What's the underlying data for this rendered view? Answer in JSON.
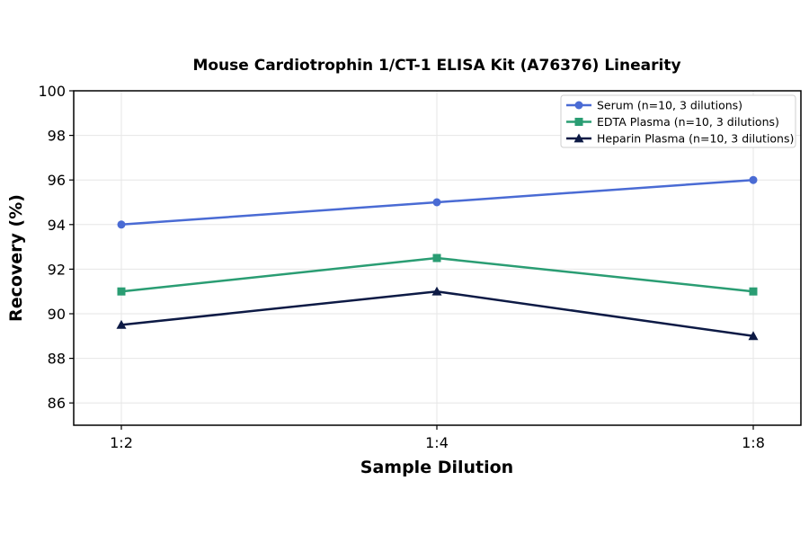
{
  "chart_data": {
    "type": "line",
    "title": "Mouse Cardiotrophin 1/CT-1 ELISA Kit (A76376) Linearity",
    "xlabel": "Sample Dilution",
    "ylabel": "Recovery (%)",
    "categories": [
      "1:2",
      "1:4",
      "1:8"
    ],
    "ylim": [
      85,
      100
    ],
    "yticks": [
      86,
      88,
      90,
      92,
      94,
      96,
      98,
      100
    ],
    "grid": true,
    "legend_position": "top-right",
    "series": [
      {
        "name": "Serum (n=10, 3 dilutions)",
        "values": [
          94,
          95,
          96
        ],
        "color": "#4a6bd4",
        "marker": "circle"
      },
      {
        "name": "EDTA Plasma (n=10, 3 dilutions)",
        "values": [
          91,
          92.5,
          91
        ],
        "color": "#2a9d73",
        "marker": "square"
      },
      {
        "name": "Heparin Plasma (n=10, 3 dilutions)",
        "values": [
          89.5,
          91,
          89
        ],
        "color": "#0d1a45",
        "marker": "triangle"
      }
    ]
  }
}
